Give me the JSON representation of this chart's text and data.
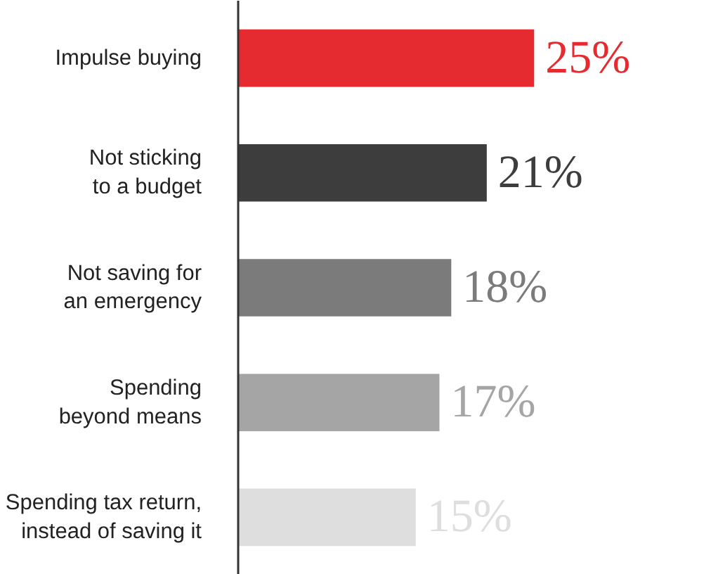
{
  "chart_data": {
    "type": "bar",
    "orientation": "horizontal",
    "categories": [
      "Impulse buying",
      "Not sticking\nto a budget",
      "Not saving for\nan emergency",
      "Spending\nbeyond means",
      "Spending tax return,\ninstead of saving it"
    ],
    "values": [
      25,
      21,
      18,
      17,
      15
    ],
    "colors": [
      "#e52b2f",
      "#3d3d3d",
      "#7b7b7b",
      "#a5a5a5",
      "#dedede"
    ],
    "data_labels": true,
    "value_labels": [
      "25%",
      "21%",
      "18%",
      "17%",
      "15%"
    ],
    "grid": false
  }
}
